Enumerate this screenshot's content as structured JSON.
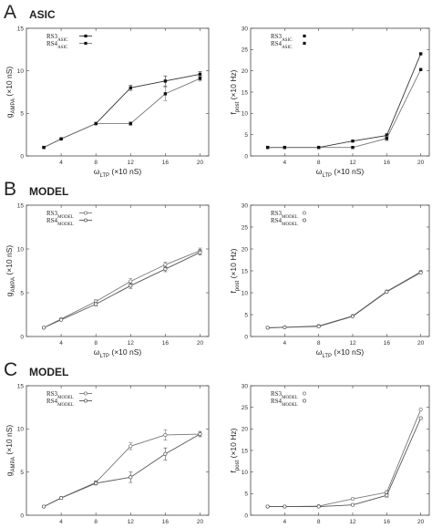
{
  "panels": [
    {
      "label": "A",
      "title": "ASIC"
    },
    {
      "label": "B",
      "title": "MODEL"
    },
    {
      "label": "C",
      "title": "MODEL"
    }
  ],
  "chart_data": [
    {
      "type": "line",
      "panel": "A",
      "title": "",
      "xlabel": "ωLTP (×10 nS)",
      "ylabel": "gAMPA (×10 nS)",
      "xlim": [
        0,
        21
      ],
      "ylim": [
        0,
        15
      ],
      "xticks": [
        4,
        8,
        12,
        16,
        20
      ],
      "yticks": [
        0,
        5,
        10,
        15
      ],
      "legend_position": "top-left",
      "series": [
        {
          "name": "RS3ASIC",
          "x": [
            2,
            4,
            8,
            12,
            16,
            20
          ],
          "y": [
            1.0,
            2.0,
            3.8,
            8.0,
            8.8,
            9.6
          ],
          "err": [
            0,
            0,
            0,
            0.3,
            0.6,
            0.3
          ],
          "marker": "square",
          "color": "#333333"
        },
        {
          "name": "RS4ASIC",
          "x": [
            2,
            4,
            8,
            12,
            16,
            20
          ],
          "y": [
            1.0,
            2.0,
            3.8,
            3.8,
            7.3,
            9.1
          ],
          "err": [
            0,
            0,
            0,
            0.2,
            0.8,
            0.3
          ],
          "marker": "square",
          "color": "#777777"
        }
      ]
    },
    {
      "type": "line",
      "panel": "A",
      "title": "",
      "xlabel": "ωLTP (×10 nS)",
      "ylabel": "fpost (×10 Hz)",
      "xlim": [
        0,
        21
      ],
      "ylim": [
        0,
        30
      ],
      "xticks": [
        4,
        8,
        12,
        16,
        20
      ],
      "yticks": [
        0,
        5,
        10,
        15,
        20,
        25,
        30
      ],
      "legend_position": "top-left",
      "series": [
        {
          "name": "RS3ASIC",
          "x": [
            2,
            4,
            8,
            12,
            16,
            20
          ],
          "y": [
            2,
            2,
            2,
            3.5,
            4.8,
            24
          ],
          "err": [
            0,
            0,
            0,
            0,
            0.5,
            0
          ],
          "marker": "square",
          "color": "#333333"
        },
        {
          "name": "RS4ASIC",
          "x": [
            2,
            4,
            8,
            12,
            16,
            20
          ],
          "y": [
            2,
            2,
            2,
            2,
            4.1,
            20.3
          ],
          "err": [
            0,
            0,
            0,
            0,
            0.5,
            0
          ],
          "marker": "square",
          "color": "#777777"
        }
      ]
    },
    {
      "type": "line",
      "panel": "B",
      "title": "",
      "xlabel": "ωLTP (×10 nS)",
      "ylabel": "gAMPA (×10 nS)",
      "xlim": [
        0,
        21
      ],
      "ylim": [
        0,
        15
      ],
      "xticks": [
        4,
        8,
        12,
        16,
        20
      ],
      "yticks": [
        0,
        5,
        10,
        15
      ],
      "legend_position": "top-left",
      "series": [
        {
          "name": "RS3MODEL",
          "x": [
            2,
            4,
            8,
            12,
            16,
            20
          ],
          "y": [
            1.0,
            2.0,
            4.0,
            6.3,
            8.2,
            9.8
          ],
          "err": [
            0,
            0,
            0.2,
            0.3,
            0.3,
            0.3
          ],
          "marker": "circle",
          "color": "#777777"
        },
        {
          "name": "RS4MODEL",
          "x": [
            2,
            4,
            8,
            12,
            16,
            20
          ],
          "y": [
            1.0,
            1.9,
            3.7,
            5.8,
            7.7,
            9.6
          ],
          "err": [
            0,
            0,
            0.2,
            0.3,
            0.3,
            0.3
          ],
          "marker": "circle",
          "color": "#555555"
        }
      ]
    },
    {
      "type": "line",
      "panel": "B",
      "title": "",
      "xlabel": "ωLTP (×10 nS)",
      "ylabel": "fpost (×10 Hz)",
      "xlim": [
        0,
        21
      ],
      "ylim": [
        0,
        30
      ],
      "xticks": [
        4,
        8,
        12,
        16,
        20
      ],
      "yticks": [
        0,
        5,
        10,
        15,
        20,
        25,
        30
      ],
      "legend_position": "top-left",
      "series": [
        {
          "name": "RS3MODEL",
          "x": [
            2,
            4,
            8,
            12,
            16,
            20
          ],
          "y": [
            2,
            2.1,
            2.4,
            4.7,
            10.3,
            14.8
          ],
          "err": [
            0,
            0,
            0,
            0,
            0,
            0
          ],
          "marker": "circle",
          "color": "#777777"
        },
        {
          "name": "RS4MODEL",
          "x": [
            2,
            4,
            8,
            12,
            16,
            20
          ],
          "y": [
            2,
            2.1,
            2.3,
            4.6,
            10.2,
            14.6
          ],
          "err": [
            0,
            0,
            0,
            0,
            0,
            0
          ],
          "marker": "circle",
          "color": "#555555"
        }
      ]
    },
    {
      "type": "line",
      "panel": "C",
      "title": "",
      "xlabel": "ωLTP (×10 nS)",
      "ylabel": "gAMPA (×10 nS)",
      "xlim": [
        0,
        21
      ],
      "ylim": [
        0,
        15
      ],
      "xticks": [
        4,
        8,
        12,
        16,
        20
      ],
      "yticks": [
        0,
        5,
        10,
        15
      ],
      "legend_position": "top-left",
      "series": [
        {
          "name": "RS3MODEL",
          "x": [
            2,
            4,
            8,
            12,
            16,
            20
          ],
          "y": [
            1.0,
            2.0,
            3.8,
            8.0,
            9.3,
            9.4
          ],
          "err": [
            0,
            0,
            0.2,
            0.4,
            0.6,
            0.3
          ],
          "marker": "circle",
          "color": "#777777"
        },
        {
          "name": "RS4MODEL",
          "x": [
            2,
            4,
            8,
            12,
            16,
            20
          ],
          "y": [
            1.0,
            2.0,
            3.7,
            4.4,
            7.1,
            9.4
          ],
          "err": [
            0,
            0,
            0.2,
            0.6,
            0.7,
            0.3
          ],
          "marker": "circle",
          "color": "#555555"
        }
      ]
    },
    {
      "type": "line",
      "panel": "C",
      "title": "",
      "xlabel": "ωLTP (×10 nS)",
      "ylabel": "fpost (×10 Hz)",
      "xlim": [
        0,
        21
      ],
      "ylim": [
        0,
        30
      ],
      "xticks": [
        4,
        8,
        12,
        16,
        20
      ],
      "yticks": [
        0,
        5,
        10,
        15,
        20,
        25,
        30
      ],
      "legend_position": "top-left",
      "series": [
        {
          "name": "RS3MODEL",
          "x": [
            2,
            4,
            8,
            12,
            16,
            20
          ],
          "y": [
            2,
            2,
            2.1,
            3.8,
            5.3,
            24.5
          ],
          "err": [
            0,
            0,
            0,
            0,
            0.4,
            0
          ],
          "marker": "circle",
          "color": "#777777"
        },
        {
          "name": "RS4MODEL",
          "x": [
            2,
            4,
            8,
            12,
            16,
            20
          ],
          "y": [
            2,
            2,
            2.0,
            2.4,
            4.6,
            22.5
          ],
          "err": [
            0,
            0,
            0,
            0,
            0.4,
            0
          ],
          "marker": "circle",
          "color": "#555555"
        }
      ]
    }
  ]
}
